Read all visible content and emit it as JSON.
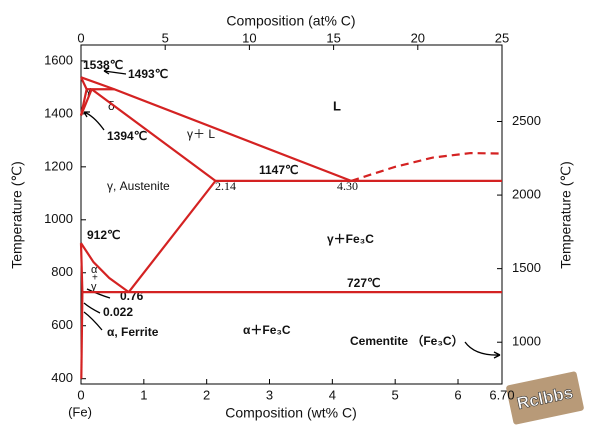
{
  "chart_data": {
    "type": "phase-diagram",
    "color": "#d42222",
    "title_top": "Composition (at% C)",
    "xlabel": "Composition (wt% C)",
    "ylabel": "Temperature (℃)",
    "y2label": "Temperature (℃)",
    "origin_label": "(Fe)",
    "xlim": [
      0,
      6.7
    ],
    "xticks": [
      0,
      1,
      2,
      3,
      4,
      5,
      6,
      {
        "value": 6.7,
        "label": "6.70"
      }
    ],
    "x2lim": [
      0,
      25
    ],
    "x2ticks": [
      0,
      5,
      10,
      15,
      20,
      25
    ],
    "ylim": [
      380,
      1660
    ],
    "yticks": [
      400,
      600,
      800,
      1000,
      1200,
      1400,
      1600
    ],
    "y2lim": [
      716,
      3020
    ],
    "y2ticks": [
      1000,
      1500,
      2000,
      2500
    ],
    "boundaries": [
      {
        "style": "solid",
        "x": [
          0,
          0.53,
          4.3
        ],
        "y": [
          1538,
          1493,
          1147
        ]
      },
      {
        "style": "dashed",
        "x": [
          4.3,
          5.0,
          5.6,
          6.2,
          6.7
        ],
        "y": [
          1147,
          1200,
          1235,
          1252,
          1250
        ]
      },
      {
        "style": "solid",
        "x": [
          0,
          0.09
        ],
        "y": [
          1538,
          1493
        ]
      },
      {
        "style": "solid",
        "x": [
          0.09,
          0.53
        ],
        "y": [
          1493,
          1493
        ]
      },
      {
        "style": "solid",
        "x": [
          0,
          0.09
        ],
        "y": [
          1394,
          1493
        ]
      },
      {
        "style": "solid",
        "x": [
          0,
          0.17
        ],
        "y": [
          1394,
          1493
        ]
      },
      {
        "style": "solid",
        "x": [
          0.17,
          2.14
        ],
        "y": [
          1493,
          1147
        ]
      },
      {
        "style": "solid",
        "x": [
          2.14,
          6.7
        ],
        "y": [
          1147,
          1147
        ]
      },
      {
        "style": "solid",
        "x": [
          2.14,
          0.76
        ],
        "y": [
          1147,
          727
        ]
      },
      {
        "style": "solid",
        "x": [
          0,
          0.2,
          0.45,
          0.76
        ],
        "y": [
          912,
          840,
          780,
          727
        ]
      },
      {
        "style": "solid",
        "x": [
          0.022,
          6.7
        ],
        "y": [
          727,
          727
        ]
      },
      {
        "style": "solid",
        "x": [
          0,
          0.022
        ],
        "y": [
          912,
          727
        ]
      },
      {
        "style": "solid",
        "x": [
          0.022,
          0.005
        ],
        "y": [
          727,
          400
        ]
      }
    ],
    "annotations": [
      "1538℃",
      "1493℃",
      "δ",
      "γ",
      "1394℃",
      "γ＋ L",
      "L",
      "γ, Austenite",
      "1147℃",
      "2.14",
      "4.30",
      "γ＋Fe₃C",
      "912℃",
      "α",
      "+",
      "γ",
      "0.76",
      "0.022",
      "727℃",
      "α, Ferrite",
      "α＋Fe₃C",
      "Cementite （Fe₃C）"
    ],
    "watermark": "Rclbbs"
  }
}
